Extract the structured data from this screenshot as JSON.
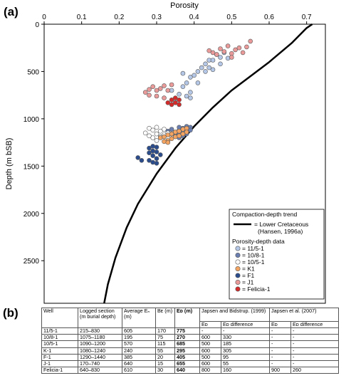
{
  "panel_a": {
    "label": "(a)"
  },
  "panel_b": {
    "label": "(b)"
  },
  "chart_data": {
    "type": "scatter",
    "xlabel": "Porosity",
    "ylabel": "Depth (m bSB)",
    "x_ticks": [
      "0",
      "0.1",
      "0.2",
      "0.3",
      "0.4",
      "0.5",
      "0.6",
      "0.7"
    ],
    "y_ticks": [
      "0",
      "500",
      "1000",
      "1500",
      "2000",
      "2500"
    ],
    "xlim": [
      0,
      0.75
    ],
    "ylim": [
      2950,
      0
    ],
    "x_axis_position": "top",
    "y_axis_inverted": true,
    "grid": false,
    "legend": {
      "placement": "bottom-right",
      "trend_title": "Compaction-depth trend",
      "trend_entries": [
        "= Lower Cretaceous",
        "(Hansen, 1996a)"
      ],
      "data_title": "Porosity-depth data"
    },
    "trend": {
      "name": "= Lower Cretaceous",
      "color": "#000000",
      "x": [
        0.715,
        0.7,
        0.66,
        0.6,
        0.55,
        0.5,
        0.45,
        0.4,
        0.35,
        0.3,
        0.25,
        0.22,
        0.19,
        0.17,
        0.16
      ],
      "y": [
        0,
        40,
        200,
        400,
        550,
        700,
        880,
        1080,
        1310,
        1580,
        1900,
        2150,
        2470,
        2750,
        2950
      ]
    },
    "series": [
      {
        "name": "= 11/5-1",
        "color": "#b4c7e7",
        "x": [
          0.34,
          0.37,
          0.38,
          0.39,
          0.39,
          0.4,
          0.41,
          0.41,
          0.42,
          0.43,
          0.43,
          0.44,
          0.44,
          0.45,
          0.45,
          0.46,
          0.47,
          0.47,
          0.48,
          0.49,
          0.37,
          0.38,
          0.39,
          0.36,
          0.35
        ],
        "y": [
          700,
          660,
          620,
          560,
          720,
          540,
          500,
          620,
          460,
          420,
          500,
          380,
          460,
          380,
          480,
          320,
          350,
          420,
          300,
          360,
          520,
          760,
          780,
          740,
          800
        ]
      },
      {
        "name": "= 10/8-1",
        "color": "#6a7fb0",
        "x": [
          0.33,
          0.34,
          0.34,
          0.35,
          0.35,
          0.36,
          0.36,
          0.36,
          0.37,
          0.37,
          0.38,
          0.38,
          0.38,
          0.39,
          0.39,
          0.37,
          0.36
        ],
        "y": [
          1130,
          1160,
          1110,
          1140,
          1180,
          1120,
          1090,
          1160,
          1100,
          1140,
          1080,
          1120,
          1160,
          1090,
          1120,
          1180,
          1200
        ]
      },
      {
        "name": "= 10/5-1",
        "color": "#ffffff",
        "x": [
          0.27,
          0.28,
          0.28,
          0.29,
          0.29,
          0.3,
          0.3,
          0.31,
          0.31,
          0.32,
          0.32,
          0.33,
          0.33,
          0.3
        ],
        "y": [
          1150,
          1100,
          1180,
          1120,
          1200,
          1090,
          1160,
          1130,
          1190,
          1110,
          1170,
          1150,
          1200,
          1230
        ]
      },
      {
        "name": "= K1",
        "color": "#f4a460",
        "x": [
          0.31,
          0.32,
          0.33,
          0.33,
          0.34,
          0.34,
          0.35,
          0.35,
          0.36,
          0.36,
          0.37,
          0.37,
          0.38,
          0.38,
          0.32,
          0.33
        ],
        "y": [
          1200,
          1190,
          1170,
          1230,
          1160,
          1210,
          1140,
          1190,
          1130,
          1180,
          1110,
          1160,
          1100,
          1140,
          1240,
          1250
        ]
      },
      {
        "name": "= F1",
        "color": "#2b4c8c",
        "x": [
          0.25,
          0.26,
          0.28,
          0.28,
          0.29,
          0.29,
          0.29,
          0.3,
          0.3,
          0.3,
          0.31,
          0.29,
          0.3,
          0.28
        ],
        "y": [
          1410,
          1440,
          1310,
          1360,
          1290,
          1340,
          1390,
          1300,
          1350,
          1420,
          1380,
          1460,
          1470,
          1440
        ]
      },
      {
        "name": "= J1",
        "color": "#eb9a9a",
        "x": [
          0.27,
          0.28,
          0.29,
          0.3,
          0.31,
          0.32,
          0.33,
          0.34,
          0.3,
          0.44,
          0.45,
          0.46,
          0.47,
          0.48,
          0.49,
          0.5,
          0.5,
          0.51,
          0.52,
          0.53,
          0.54,
          0.55,
          0.28,
          0.32
        ],
        "y": [
          720,
          690,
          660,
          700,
          680,
          650,
          700,
          640,
          760,
          280,
          300,
          320,
          260,
          290,
          230,
          310,
          350,
          270,
          250,
          300,
          240,
          180,
          750,
          780
        ]
      },
      {
        "name": "= Felicia-1",
        "color": "#d42a2a",
        "x": [
          0.33,
          0.34,
          0.34,
          0.35,
          0.35,
          0.36,
          0.36
        ],
        "y": [
          830,
          800,
          850,
          780,
          830,
          800,
          850
        ]
      }
    ]
  },
  "table": {
    "headers": [
      "Well",
      "Logged section (m burial depth)",
      "Average Eₙ (m)",
      "Bᴇ (m)",
      "Eᴅ (m)",
      "Japsen and Bidstrup. (1999)",
      "Japsen et al. (2007)"
    ],
    "sub_headers": [
      "Eᴅ",
      "Eᴅ difference",
      "Eᴅ",
      "Eᴅ difference"
    ],
    "rows": [
      [
        "11/5-1",
        "215–830",
        "605",
        "170",
        "775",
        "-",
        "-",
        "-",
        "-"
      ],
      [
        "10/8-1",
        "1075–1180",
        "195",
        "75",
        "270",
        "600",
        "330",
        "-",
        "-"
      ],
      [
        "10/5-1",
        "1090–1200",
        "570",
        "115",
        "685",
        "500",
        "185",
        "-",
        "-"
      ],
      [
        "K-1",
        "1080–1240",
        "240",
        "55",
        "295",
        "600",
        "305",
        "-",
        "-"
      ],
      [
        "F-1",
        "1290–1440",
        "385",
        "20",
        "405",
        "500",
        "95",
        "-",
        "-"
      ],
      [
        "J-1",
        "170–740",
        "640",
        "15",
        "655",
        "600",
        "55",
        "-",
        "-"
      ],
      [
        "Felicia-1",
        "640–830",
        "610",
        "30",
        "640",
        "800",
        "160",
        "900",
        "260"
      ]
    ]
  }
}
